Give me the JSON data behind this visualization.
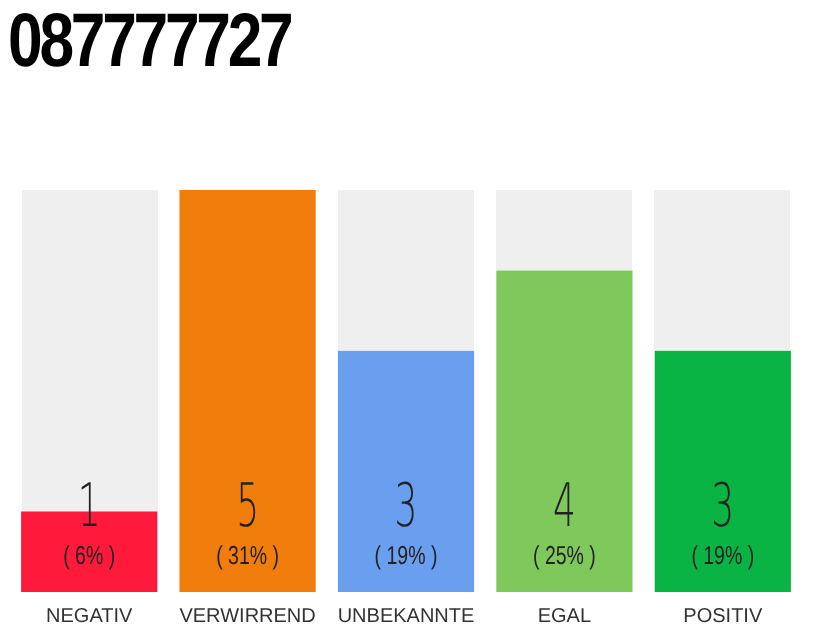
{
  "chart_data": {
    "type": "bar",
    "title": "087777727",
    "categories": [
      "NEGATIV",
      "VERWIRREND",
      "UNBEKANNTE",
      "EGAL",
      "POSITIV"
    ],
    "values": [
      1,
      5,
      3,
      4,
      3
    ],
    "colors": [
      "#ff1a3c",
      "#f07d0c",
      "#6a9eee",
      "#7ec85c",
      "#0ab444"
    ],
    "annotations": [
      "( 6% )",
      "( 31% )",
      "( 19% )",
      "( 25% )",
      "( 19% )"
    ],
    "data_labels": true,
    "tick_labels": "x",
    "grid": false,
    "legend": false
  }
}
